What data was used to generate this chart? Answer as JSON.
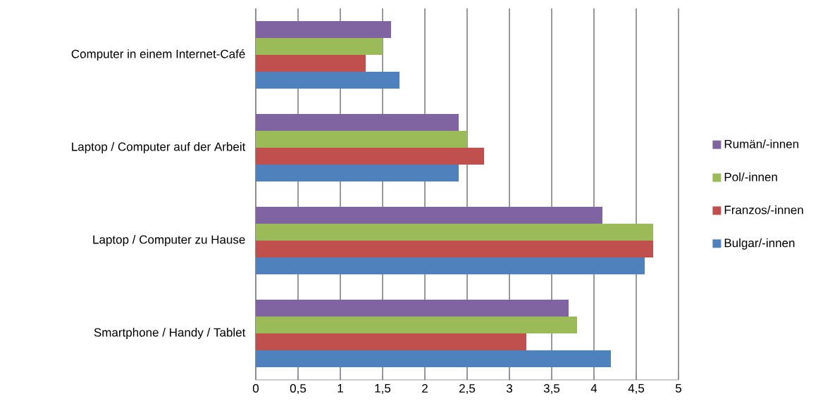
{
  "chart_data": {
    "type": "bar",
    "orientation": "horizontal",
    "categories": [
      "Computer in einem Internet-Café",
      "Laptop / Computer auf der Arbeit",
      "Laptop / Computer zu Hause",
      "Smartphone / Handy / Tablet"
    ],
    "series": [
      {
        "name": "Bulgar/-innen",
        "color": "#4f81bd",
        "values": [
          1.7,
          2.4,
          4.6,
          4.2
        ]
      },
      {
        "name": "Franzos/-innen",
        "color": "#c0504d",
        "values": [
          1.3,
          2.7,
          4.7,
          3.2
        ]
      },
      {
        "name": "Pol/-innen",
        "color": "#9bbb59",
        "values": [
          1.5,
          2.5,
          4.7,
          3.8
        ]
      },
      {
        "name": "Rumän/-innen",
        "color": "#8064a2",
        "values": [
          1.6,
          2.4,
          4.1,
          3.7
        ]
      }
    ],
    "xlim": [
      0,
      5
    ],
    "xticks": [
      0,
      {
        "value": 0.5,
        "label": "0,5"
      },
      1,
      {
        "value": 1.5,
        "label": "1,5"
      },
      2,
      {
        "value": 2.5,
        "label": "2,5"
      },
      3,
      {
        "value": 3.5,
        "label": "3,5"
      },
      4,
      {
        "value": 4.5,
        "label": "4,5"
      },
      5
    ],
    "grid": "x",
    "legend": "right"
  }
}
